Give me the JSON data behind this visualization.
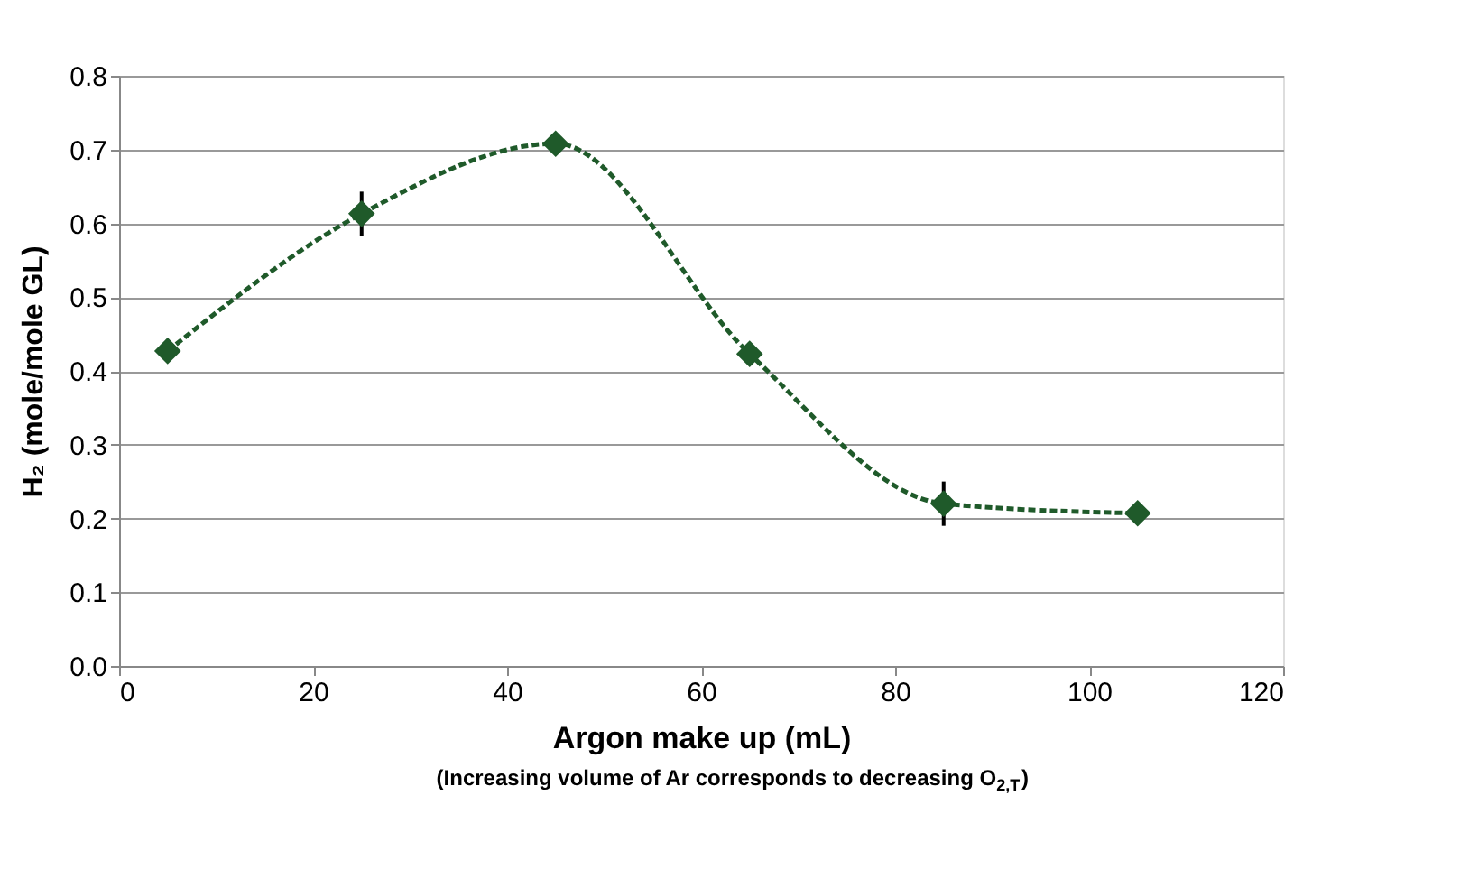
{
  "chart_data": {
    "type": "line",
    "xlabel": "Argon make up (mL)",
    "ylabel": "H₂ (mole/mole GL)",
    "annotations": [
      "(Increasing volume of Ar corresponds to decreasing O$_{2,T}$)"
    ],
    "x": [
      5,
      25,
      45,
      65,
      85,
      105
    ],
    "series": [
      {
        "color": "#1f5a2a",
        "values": [
          0.427,
          0.613,
          0.708,
          0.423,
          0.22,
          0.207
        ],
        "errors": [
          null,
          0.03,
          null,
          null,
          0.03,
          null
        ]
      }
    ],
    "xlim": [
      0,
      120
    ],
    "xticks": [
      0,
      20,
      40,
      60,
      80,
      100,
      120
    ],
    "ylim": [
      0,
      0.8
    ],
    "yticks": [
      {
        "value": 0,
        "label": "0.0"
      },
      0.1,
      0.2,
      0.3,
      0.4,
      0.5,
      0.6,
      0.7,
      0.8
    ],
    "grid": "y",
    "marker": "diamond",
    "line_style": "dashed"
  }
}
